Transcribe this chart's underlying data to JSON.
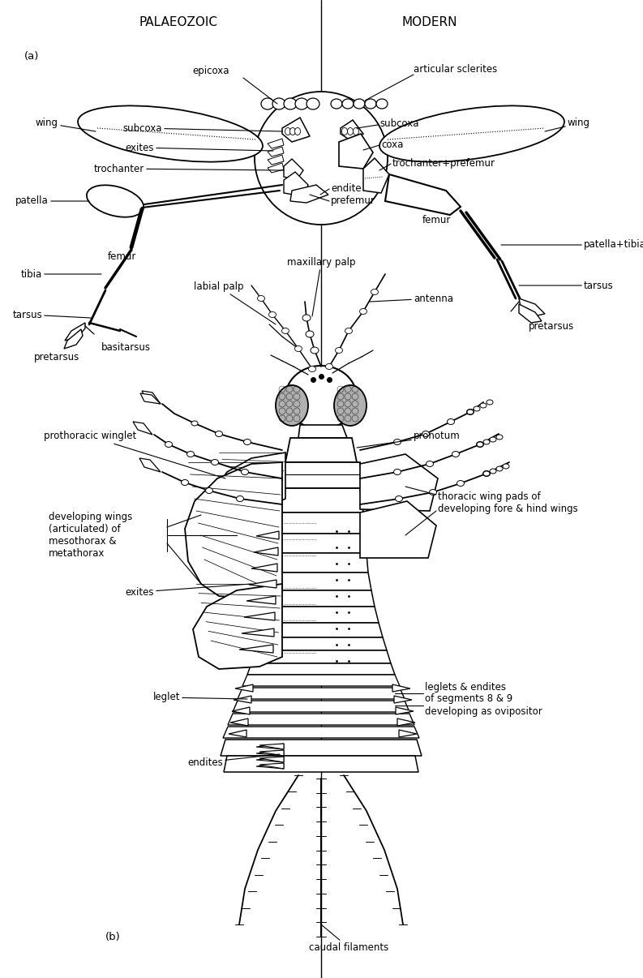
{
  "title_left": "PALAEOZOIC",
  "title_right": "MODERN",
  "label_a": "(a)",
  "label_b": "(b)",
  "bg_color": "#ffffff",
  "fig_width": 7.93,
  "fig_height": 12.06,
  "font_size_title": 11,
  "font_size_label": 9.5,
  "font_size_annot": 8.5
}
